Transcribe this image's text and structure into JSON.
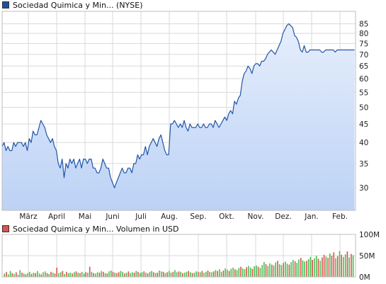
{
  "colors": {
    "price_line": "#2155a8",
    "price_fill_top": "#e6eefc",
    "price_fill_bottom": "#bcd2f5",
    "grid": "#d9d9d9",
    "frame": "#bdbdbd",
    "vol_up": "#4cbb4c",
    "vol_down": "#d9534f",
    "price_swatch": "#1f4e9e",
    "volume_swatch": "#d9534f"
  },
  "legend": {
    "price_label": "Sociedad Quimica y Min... (NYSE)",
    "volume_label": "Sociedad Quimica y Min... Volumen in USD"
  },
  "chart_data": [
    {
      "type": "area",
      "title": "Sociedad Quimica y Min... (NYSE)",
      "x_tick_labels": [
        "März",
        "April",
        "Mai",
        "Juni",
        "Juli",
        "Aug.",
        "Sep.",
        "Okt.",
        "Nov.",
        "Dez.",
        "Jan.",
        "Feb."
      ],
      "y_axis_position": "right",
      "y_scale": "log",
      "y_ticks": [
        30,
        35,
        40,
        45,
        50,
        55,
        60,
        65,
        70,
        75,
        80,
        85
      ],
      "ylim": [
        26,
        92
      ],
      "x_range_days": [
        0,
        365
      ],
      "grid": true,
      "series": [
        {
          "x": [
            0,
            2,
            4,
            6,
            8,
            10,
            12,
            14,
            16,
            18,
            20,
            22,
            24,
            26,
            28,
            30,
            32,
            34,
            36,
            38,
            40,
            42,
            44,
            46,
            48,
            50,
            52,
            54,
            56,
            58,
            60,
            62,
            64,
            66,
            68,
            70,
            72,
            74,
            76,
            78,
            80,
            82,
            84,
            86,
            88,
            90,
            92,
            94,
            96,
            98,
            100,
            102,
            104,
            106,
            108,
            110,
            112,
            114,
            116,
            118,
            120,
            122,
            124,
            126,
            128,
            130,
            132,
            134,
            136,
            138,
            140,
            142,
            144,
            146,
            148,
            150,
            152,
            154,
            156,
            158,
            160,
            162,
            164,
            166,
            168,
            170,
            172,
            174,
            176,
            178,
            180,
            182,
            184,
            186,
            188,
            190,
            192,
            194,
            196,
            198,
            200,
            202,
            204,
            206,
            208,
            210,
            212,
            214,
            216,
            218,
            220,
            222,
            224,
            226,
            228,
            230,
            232,
            234,
            236,
            238,
            240,
            242,
            244,
            246,
            248,
            250,
            252,
            254,
            256,
            258,
            260,
            262,
            264,
            266,
            268,
            270,
            272,
            274,
            276,
            278,
            280,
            282,
            284,
            286,
            288,
            290,
            292,
            294,
            296,
            298,
            300,
            302,
            304,
            306,
            308,
            310,
            312,
            314,
            316,
            318,
            320,
            322,
            324,
            326,
            328,
            330,
            332,
            334,
            336,
            338,
            340,
            342,
            344,
            346,
            348,
            350,
            352,
            354,
            356,
            358,
            360,
            362,
            364
          ],
          "values": [
            39,
            40,
            38,
            39,
            38,
            38,
            40,
            39,
            40,
            40,
            40,
            39,
            40,
            38,
            41,
            40,
            43,
            42,
            42,
            44,
            46,
            45,
            44,
            42,
            41,
            40,
            41,
            39,
            38,
            35,
            34,
            36,
            32,
            35,
            34,
            36,
            35,
            36,
            34,
            35,
            36,
            34,
            36,
            36,
            35,
            36,
            36,
            34,
            34,
            33,
            33,
            34,
            36,
            35,
            34,
            34,
            32,
            31,
            30,
            31,
            32,
            33,
            34,
            33,
            33,
            34,
            34,
            33,
            35,
            35,
            37,
            36,
            37,
            37,
            39,
            37,
            39,
            40,
            41,
            40,
            39,
            41,
            42,
            40,
            38,
            37,
            37,
            45,
            45,
            46,
            45,
            44,
            45,
            44,
            46,
            44,
            43,
            45,
            44,
            44,
            44,
            45,
            44,
            44,
            45,
            44,
            44,
            45,
            45,
            44,
            46,
            45,
            44,
            45,
            46,
            47,
            46,
            48,
            49,
            48,
            52,
            51,
            53,
            54,
            59,
            62,
            63,
            65,
            64,
            62,
            65,
            66,
            66,
            65,
            67,
            67,
            68,
            70,
            71,
            72,
            71,
            70,
            72,
            74,
            76,
            80,
            82,
            84,
            85,
            84,
            83,
            79,
            78,
            76,
            72,
            71,
            74,
            71,
            71,
            72,
            72,
            72,
            72,
            72,
            72,
            71,
            71,
            72,
            72,
            72,
            72,
            72,
            71,
            72,
            72,
            72,
            72,
            72,
            72,
            72,
            72,
            72,
            72
          ]
        }
      ]
    },
    {
      "type": "bar",
      "title": "Sociedad Quimica y Min... Volumen in USD",
      "y_axis_position": "right",
      "y_tick_labels": [
        "100M",
        "50M",
        "0M"
      ],
      "y_ticks": [
        100,
        50,
        0
      ],
      "ylim": [
        0,
        100
      ],
      "unit": "M USD",
      "grid": true,
      "bar_colors": "green = price up day, red = price down day",
      "series": [
        {
          "values": [
            8,
            12,
            6,
            14,
            9,
            7,
            11,
            5,
            16,
            10,
            8,
            6,
            9,
            12,
            7,
            10,
            9,
            14,
            8,
            6,
            11,
            13,
            9,
            7,
            12,
            10,
            8,
            22,
            9,
            11,
            14,
            7,
            12,
            9,
            10,
            8,
            11,
            13,
            10,
            9,
            12,
            8,
            11,
            10,
            24,
            12,
            9,
            8,
            11,
            10,
            14,
            12,
            9,
            8,
            13,
            15,
            12,
            10,
            9,
            11,
            14,
            12,
            8,
            10,
            13,
            9,
            11,
            10,
            14,
            12,
            9,
            11,
            13,
            10,
            8,
            12,
            14,
            11,
            9,
            10,
            15,
            13,
            12,
            9,
            11,
            14,
            10,
            12,
            16,
            11,
            13,
            12,
            9,
            10,
            12,
            14,
            11,
            9,
            10,
            13,
            12,
            11,
            14,
            10,
            12,
            15,
            12,
            11,
            13,
            16,
            14,
            18,
            12,
            15,
            20,
            17,
            14,
            19,
            22,
            18,
            16,
            21,
            24,
            20,
            18,
            23,
            26,
            22,
            19,
            25,
            27,
            24,
            21,
            28,
            35,
            30,
            26,
            32,
            29,
            27,
            34,
            38,
            30,
            28,
            33,
            36,
            31,
            29,
            35,
            40,
            37,
            33,
            41,
            45,
            39,
            36,
            38,
            42,
            47,
            40,
            44,
            50,
            43,
            38,
            46,
            52,
            48,
            45,
            55,
            50,
            58,
            44,
            49,
            61,
            52,
            47,
            53,
            60,
            46,
            54,
            51
          ],
          "up": [
            1,
            0,
            1,
            1,
            0,
            1,
            0,
            1,
            1,
            0,
            1,
            0,
            1,
            1,
            0,
            1,
            0,
            1,
            1,
            0,
            1,
            1,
            0,
            1,
            0,
            1,
            0,
            0,
            1,
            1,
            0,
            1,
            0,
            1,
            1,
            0,
            1,
            0,
            1,
            0,
            1,
            1,
            0,
            1,
            0,
            1,
            0,
            1,
            1,
            0,
            1,
            0,
            1,
            0,
            1,
            1,
            0,
            1,
            0,
            0,
            1,
            1,
            0,
            1,
            0,
            1,
            1,
            0,
            1,
            0,
            1,
            1,
            0,
            1,
            0,
            1,
            1,
            0,
            1,
            0,
            1,
            1,
            0,
            1,
            0,
            1,
            1,
            0,
            1,
            1,
            0,
            1,
            0,
            1,
            1,
            0,
            1,
            0,
            1,
            1,
            0,
            1,
            0,
            1,
            1,
            0,
            1,
            1,
            0,
            1,
            0,
            1,
            1,
            0,
            1,
            1,
            0,
            1,
            1,
            0,
            1,
            1,
            0,
            1,
            1,
            0,
            1,
            1,
            0,
            1,
            1,
            0,
            1,
            1,
            1,
            0,
            1,
            1,
            0,
            1,
            1,
            0,
            1,
            1,
            0,
            1,
            1,
            0,
            1,
            1,
            0,
            1,
            1,
            0,
            1,
            1,
            0,
            1,
            1,
            0,
            1,
            1,
            0,
            1,
            0,
            0,
            1,
            0,
            1,
            0,
            0,
            1,
            0,
            1,
            0,
            1,
            1,
            0,
            1,
            0,
            1
          ]
        }
      ]
    }
  ]
}
